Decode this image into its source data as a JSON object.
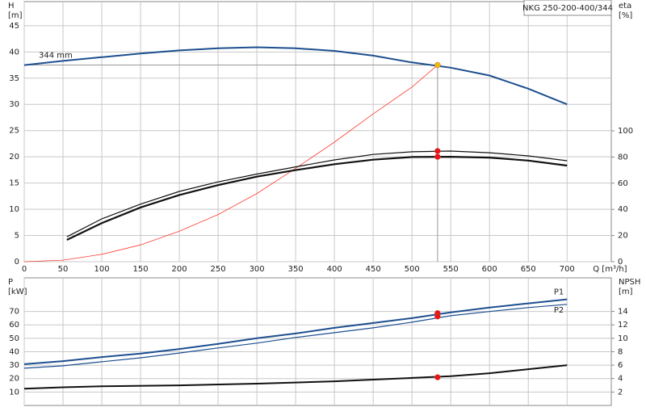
{
  "chart_data": [
    {
      "type": "line",
      "title": "NKG 250-200-400/344",
      "xlabel": "Q [m³/h]",
      "ylabel": "H",
      "yunit": "[m]",
      "y2label": "eta",
      "y2unit": "[%]",
      "xlim": [
        0,
        757
      ],
      "xticks": [
        0,
        50,
        100,
        150,
        200,
        250,
        300,
        350,
        400,
        450,
        500,
        550,
        600,
        650,
        700
      ],
      "xtick_labels": true,
      "ylim": [
        0,
        49.6
      ],
      "yticks": [
        0,
        5,
        10,
        15,
        20,
        25,
        30,
        35,
        40,
        45
      ],
      "y2lim": [
        0,
        198.8
      ],
      "y2ticks": [
        0,
        20,
        40,
        60,
        80,
        100
      ],
      "grid": true,
      "duty_x": 533,
      "series": [
        {
          "name": "344 mm",
          "label_at": "start",
          "color": "#1d4f8f",
          "width": 2,
          "guide": true,
          "marker_color": "#f5b800",
          "x": [
            0,
            50,
            100,
            150,
            200,
            250,
            300,
            350,
            400,
            450,
            500,
            550,
            600,
            650,
            700
          ],
          "values": [
            37.5,
            38.3,
            39.0,
            39.7,
            40.3,
            40.7,
            40.9,
            40.7,
            40.2,
            39.3,
            38.0,
            37.0,
            35.5,
            33.0,
            30.0
          ],
          "duty": 37.5
        },
        {
          "color": "#ff3b30",
          "width": 0.8,
          "x": [
            0,
            50,
            100,
            150,
            200,
            250,
            300,
            350,
            400,
            450,
            500,
            533
          ],
          "values": [
            0,
            0.3,
            1.4,
            3.2,
            5.8,
            9.0,
            13.0,
            17.8,
            22.8,
            28.2,
            33.3,
            37.5
          ]
        },
        {
          "color": "#111111",
          "width": 1.2,
          "axis": "y2",
          "marker_color": "#ee1111",
          "x": [
            55,
            100,
            150,
            200,
            250,
            300,
            350,
            400,
            450,
            500,
            550,
            600,
            650,
            700
          ],
          "values": [
            19,
            32.7,
            44,
            53.7,
            61,
            67,
            72.5,
            77.8,
            82,
            84,
            84.6,
            83.3,
            80.9,
            77.2
          ],
          "duty": 84.6
        },
        {
          "color": "#111111",
          "width": 2.2,
          "axis": "y2",
          "marker_color": "#ee1111",
          "x": [
            55,
            100,
            150,
            200,
            250,
            300,
            350,
            400,
            450,
            500,
            550,
            600,
            650,
            700
          ],
          "values": [
            16.7,
            29.5,
            41.5,
            51,
            58.5,
            65,
            70,
            74.5,
            78,
            80,
            80.2,
            79.6,
            77.3,
            73.5
          ],
          "duty": 80.2
        }
      ]
    },
    {
      "type": "line",
      "ylabel": "P",
      "yunit": "[kW]",
      "y2label": "NPSH",
      "y2unit": "[m]",
      "xlim": [
        0,
        757
      ],
      "xticks": [
        0,
        50,
        100,
        150,
        200,
        250,
        300,
        350,
        400,
        450,
        500,
        550,
        600,
        650,
        700
      ],
      "xtick_labels": false,
      "ylim": [
        0,
        95
      ],
      "yticks": [
        10,
        20,
        30,
        40,
        50,
        60,
        70
      ],
      "y2lim": [
        0,
        19
      ],
      "y2ticks": [
        2,
        4,
        6,
        8,
        10,
        12,
        14
      ],
      "grid": true,
      "duty_x": 533,
      "series": [
        {
          "name": "P1",
          "label_at": "end",
          "color": "#1d4f8f",
          "width": 2,
          "marker_color": "#ee1111",
          "x": [
            0,
            50,
            100,
            150,
            200,
            250,
            300,
            350,
            400,
            450,
            500,
            550,
            600,
            650,
            700
          ],
          "values": [
            30.7,
            33,
            36,
            38.6,
            42,
            45.8,
            50,
            53.6,
            57.8,
            61.4,
            65,
            69.3,
            72.9,
            76,
            79
          ],
          "duty": 68.7
        },
        {
          "name": "P2",
          "label_at": "end-below",
          "color": "#1d4f8f",
          "width": 1.2,
          "marker_color": "#ee1111",
          "x": [
            0,
            50,
            100,
            150,
            200,
            250,
            300,
            350,
            400,
            450,
            500,
            550,
            600,
            650,
            700
          ],
          "values": [
            27.7,
            29.5,
            32.5,
            35.5,
            39,
            42.8,
            46.4,
            50.6,
            54.2,
            57.8,
            62,
            66.8,
            69.9,
            72.9,
            75.3
          ],
          "duty": 66.3
        },
        {
          "color": "#111111",
          "width": 2,
          "axis": "y2",
          "marker_color": "#ee1111",
          "x": [
            0,
            50,
            100,
            200,
            300,
            400,
            450,
            500,
            550,
            600,
            650,
            700
          ],
          "values": [
            2.5,
            2.7,
            2.85,
            3,
            3.25,
            3.6,
            3.85,
            4.1,
            4.35,
            4.8,
            5.4,
            6.0
          ],
          "duty": 4.2
        }
      ]
    }
  ]
}
